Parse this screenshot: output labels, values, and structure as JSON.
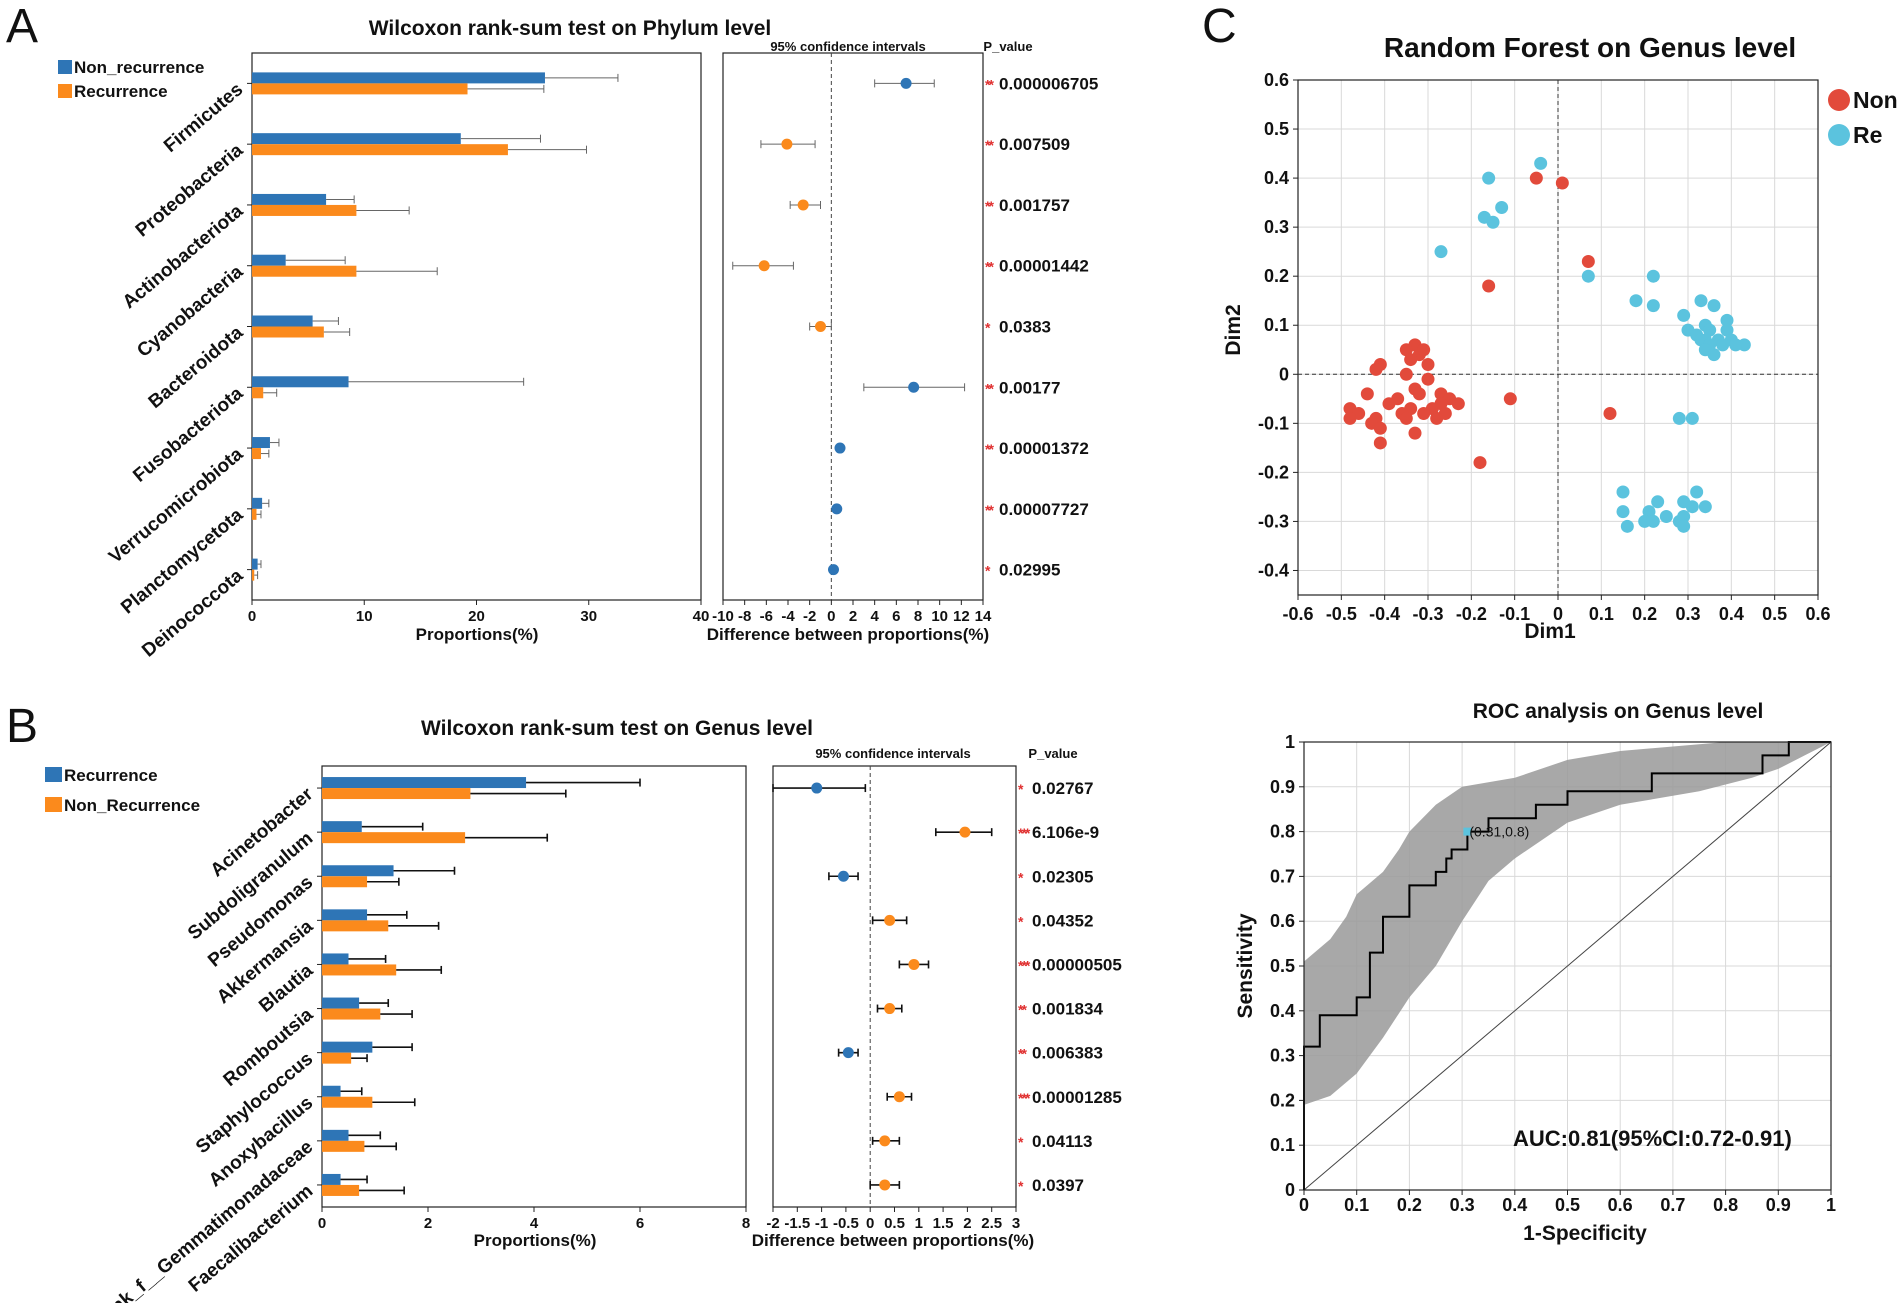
{
  "colors": {
    "blue": "#2e75b6",
    "orange": "#fb8a1c",
    "red": "#e24a3b",
    "cyan": "#5bc3de",
    "band": "#999999",
    "sig": "#e03030"
  },
  "panel_labels": {
    "a": "A",
    "b": "B",
    "c": "C"
  },
  "chart_data": [
    {
      "id": "A",
      "type": "bar",
      "title": "Wilcoxon rank-sum test on Phylum level",
      "xlabel": "Proportions(%)",
      "xlim": [
        0,
        40
      ],
      "xticks": [
        "0",
        "10",
        "20",
        "30",
        "40"
      ],
      "legend": [
        "Non_recurrence",
        "Recurrence"
      ],
      "categories": [
        "Firmicutes",
        "Proteobacteria",
        "Actinobacteriota",
        "Cyanobacteria",
        "Bacteroidota",
        "Fusobacteriota",
        "Verrucomicrobiota",
        "Planctomycetota",
        "Deinococcota"
      ],
      "series": [
        {
          "name": "Non_recurrence",
          "values": [
            26.1,
            18.6,
            6.6,
            3.0,
            5.4,
            8.6,
            1.6,
            0.9,
            0.5
          ],
          "err": [
            32.6,
            25.7,
            9.1,
            8.3,
            7.7,
            24.2,
            2.4,
            1.5,
            0.8
          ]
        },
        {
          "name": "Recurrence",
          "values": [
            19.2,
            22.8,
            9.3,
            9.3,
            6.4,
            1.0,
            0.8,
            0.4,
            0.2
          ],
          "err": [
            26.0,
            29.8,
            14.0,
            16.5,
            8.7,
            2.2,
            1.5,
            0.8,
            0.5
          ]
        }
      ],
      "ci_title": "95% confidence intervals",
      "ci_xlabel": "Difference between proportions(%)",
      "ci_xlim": [
        -10,
        14
      ],
      "ci_xticks": [
        "-10",
        "-8",
        "-6",
        "-4",
        "-2",
        "0",
        "2",
        "4",
        "6",
        "8",
        "10",
        "12",
        "14"
      ],
      "ci": [
        {
          "est": 6.9,
          "lo": 4.0,
          "hi": 9.5,
          "group": "Non_recurrence"
        },
        {
          "est": -4.1,
          "lo": -6.5,
          "hi": -1.5,
          "group": "Recurrence"
        },
        {
          "est": -2.6,
          "lo": -3.8,
          "hi": -1.0,
          "group": "Recurrence"
        },
        {
          "est": -6.2,
          "lo": -9.1,
          "hi": -3.5,
          "group": "Recurrence"
        },
        {
          "est": -1.0,
          "lo": -2.0,
          "hi": 0.0,
          "group": "Recurrence"
        },
        {
          "est": 7.6,
          "lo": 3.0,
          "hi": 12.3,
          "group": "Non_recurrence"
        },
        {
          "est": 0.8,
          "lo": 0.8,
          "hi": 0.8,
          "group": "Non_recurrence"
        },
        {
          "est": 0.5,
          "lo": 0.5,
          "hi": 0.5,
          "group": "Non_recurrence"
        },
        {
          "est": 0.2,
          "lo": 0.2,
          "hi": 0.2,
          "group": "Non_recurrence"
        }
      ],
      "p_title": "P_value",
      "p_values": [
        "0.000006705",
        "0.007509",
        "0.001757",
        "0.00001442",
        "0.0383",
        "0.00177",
        "0.00001372",
        "0.00007727",
        "0.02995"
      ],
      "p_marks": [
        "**",
        "**",
        "**",
        "**",
        "*",
        "**",
        "**",
        "**",
        "*"
      ]
    },
    {
      "id": "B",
      "type": "bar",
      "title": "Wilcoxon rank-sum test on Genus level",
      "xlabel": "Proportions(%)",
      "xlim": [
        0,
        8
      ],
      "xticks": [
        "0",
        "2",
        "4",
        "6",
        "8"
      ],
      "legend": [
        "Recurrence",
        "Non_Recurrence"
      ],
      "categories": [
        "Acinetobacter",
        "Subdoligranulum",
        "Pseudomonas",
        "Akkermansia",
        "Blautia",
        "Romboutsia",
        "Staphylococcus",
        "Anoxybacillus",
        "norank_f__Gemmatimonadaceae",
        "Faecalibacterium"
      ],
      "series": [
        {
          "name": "Recurrence",
          "values": [
            3.85,
            0.75,
            1.35,
            0.85,
            0.5,
            0.7,
            0.95,
            0.35,
            0.5,
            0.35
          ],
          "err": [
            6.0,
            1.9,
            2.5,
            1.6,
            1.2,
            1.25,
            1.7,
            0.75,
            1.1,
            0.85
          ]
        },
        {
          "name": "Non_Recurrence",
          "values": [
            2.8,
            2.7,
            0.85,
            1.25,
            1.4,
            1.1,
            0.55,
            0.95,
            0.8,
            0.7
          ],
          "err": [
            4.6,
            4.25,
            1.45,
            2.2,
            2.25,
            1.7,
            0.85,
            1.75,
            1.4,
            1.55
          ]
        }
      ],
      "ci_title": "95% confidence intervals",
      "ci_xlabel": "Difference between proportions(%)",
      "ci_xlim": [
        -2,
        3
      ],
      "ci_xticks": [
        "-2",
        "-1.5",
        "-1",
        "-0.5",
        "0",
        "0.5",
        "1",
        "1.5",
        "2",
        "2.5",
        "3"
      ],
      "ci": [
        {
          "est": -1.1,
          "lo": -2.0,
          "hi": -0.1,
          "group": "Recurrence"
        },
        {
          "est": 1.95,
          "lo": 1.35,
          "hi": 2.5,
          "group": "Non_Recurrence"
        },
        {
          "est": -0.55,
          "lo": -0.85,
          "hi": -0.25,
          "group": "Recurrence"
        },
        {
          "est": 0.4,
          "lo": 0.05,
          "hi": 0.75,
          "group": "Non_Recurrence"
        },
        {
          "est": 0.9,
          "lo": 0.6,
          "hi": 1.2,
          "group": "Non_Recurrence"
        },
        {
          "est": 0.4,
          "lo": 0.15,
          "hi": 0.65,
          "group": "Non_Recurrence"
        },
        {
          "est": -0.45,
          "lo": -0.65,
          "hi": -0.25,
          "group": "Recurrence"
        },
        {
          "est": 0.6,
          "lo": 0.35,
          "hi": 0.85,
          "group": "Non_Recurrence"
        },
        {
          "est": 0.3,
          "lo": 0.05,
          "hi": 0.6,
          "group": "Non_Recurrence"
        },
        {
          "est": 0.3,
          "lo": 0.0,
          "hi": 0.6,
          "group": "Non_Recurrence"
        }
      ],
      "p_title": "P_value",
      "p_values": [
        "0.02767",
        "6.106e-9",
        "0.02305",
        "0.04352",
        "0.00000505",
        "0.001834",
        "0.006383",
        "0.00001285",
        "0.04113",
        "0.0397"
      ],
      "p_marks": [
        "*",
        "***",
        "*",
        "*",
        "***",
        "**",
        "**",
        "***",
        "*",
        "*"
      ]
    },
    {
      "id": "C",
      "type": "scatter",
      "title": "Random Forest on Genus level",
      "xlabel": "Dim1",
      "ylabel": "Dim2",
      "xlim": [
        -0.6,
        0.6
      ],
      "ylim": [
        -0.45,
        0.6
      ],
      "xticks": [
        "-0.6",
        "-0.5",
        "-0.4",
        "-0.3",
        "-0.2",
        "-0.1",
        "0",
        "0.1",
        "0.2",
        "0.3",
        "0.4",
        "0.5",
        "0.6"
      ],
      "yticks": [
        "-0.4",
        "-0.3",
        "-0.2",
        "-0.1",
        "0",
        "0.1",
        "0.2",
        "0.3",
        "0.4",
        "0.5",
        "0.6"
      ],
      "legend": [
        "Non",
        "Re"
      ],
      "series": [
        {
          "name": "Non",
          "points": [
            [
              -0.05,
              0.4
            ],
            [
              0.01,
              0.39
            ],
            [
              0.07,
              0.23
            ],
            [
              -0.16,
              0.18
            ],
            [
              -0.33,
              0.06
            ],
            [
              -0.35,
              0.05
            ],
            [
              -0.32,
              0.04
            ],
            [
              -0.34,
              0.03
            ],
            [
              -0.31,
              0.05
            ],
            [
              -0.3,
              0.02
            ],
            [
              -0.41,
              0.02
            ],
            [
              -0.42,
              0.01
            ],
            [
              -0.35,
              0.0
            ],
            [
              -0.3,
              -0.01
            ],
            [
              -0.33,
              -0.03
            ],
            [
              -0.32,
              -0.04
            ],
            [
              -0.44,
              -0.04
            ],
            [
              -0.37,
              -0.05
            ],
            [
              -0.27,
              -0.04
            ],
            [
              -0.11,
              -0.05
            ],
            [
              -0.25,
              -0.05
            ],
            [
              -0.23,
              -0.06
            ],
            [
              -0.27,
              -0.06
            ],
            [
              -0.48,
              -0.07
            ],
            [
              -0.39,
              -0.06
            ],
            [
              -0.34,
              -0.07
            ],
            [
              -0.29,
              -0.07
            ],
            [
              -0.46,
              -0.08
            ],
            [
              -0.36,
              -0.08
            ],
            [
              -0.31,
              -0.08
            ],
            [
              -0.26,
              -0.08
            ],
            [
              -0.48,
              -0.09
            ],
            [
              -0.42,
              -0.09
            ],
            [
              -0.35,
              -0.09
            ],
            [
              -0.28,
              -0.09
            ],
            [
              -0.43,
              -0.1
            ],
            [
              -0.41,
              -0.11
            ],
            [
              -0.33,
              -0.12
            ],
            [
              0.12,
              -0.08
            ],
            [
              -0.18,
              -0.18
            ],
            [
              -0.41,
              -0.14
            ]
          ]
        },
        {
          "name": "Re",
          "points": [
            [
              -0.04,
              0.43
            ],
            [
              -0.16,
              0.4
            ],
            [
              -0.13,
              0.34
            ],
            [
              -0.17,
              0.32
            ],
            [
              -0.15,
              0.31
            ],
            [
              -0.27,
              0.25
            ],
            [
              0.07,
              0.2
            ],
            [
              0.22,
              0.2
            ],
            [
              0.18,
              0.15
            ],
            [
              0.33,
              0.15
            ],
            [
              0.22,
              0.14
            ],
            [
              0.36,
              0.14
            ],
            [
              0.29,
              0.12
            ],
            [
              0.39,
              0.11
            ],
            [
              0.34,
              0.1
            ],
            [
              0.3,
              0.09
            ],
            [
              0.35,
              0.09
            ],
            [
              0.39,
              0.09
            ],
            [
              0.32,
              0.08
            ],
            [
              0.33,
              0.07
            ],
            [
              0.37,
              0.07
            ],
            [
              0.34,
              0.07
            ],
            [
              0.4,
              0.07
            ],
            [
              0.35,
              0.06
            ],
            [
              0.38,
              0.06
            ],
            [
              0.43,
              0.06
            ],
            [
              0.41,
              0.06
            ],
            [
              0.34,
              0.05
            ],
            [
              0.36,
              0.04
            ],
            [
              0.28,
              -0.09
            ],
            [
              0.31,
              -0.09
            ],
            [
              0.15,
              -0.24
            ],
            [
              0.32,
              -0.24
            ],
            [
              0.23,
              -0.26
            ],
            [
              0.29,
              -0.26
            ],
            [
              0.34,
              -0.27
            ],
            [
              0.31,
              -0.27
            ],
            [
              0.15,
              -0.28
            ],
            [
              0.21,
              -0.28
            ],
            [
              0.25,
              -0.29
            ],
            [
              0.29,
              -0.29
            ],
            [
              0.28,
              -0.3
            ],
            [
              0.16,
              -0.31
            ],
            [
              0.2,
              -0.3
            ],
            [
              0.22,
              -0.3
            ],
            [
              0.29,
              -0.31
            ]
          ]
        }
      ]
    },
    {
      "id": "D",
      "type": "line",
      "title": "ROC analysis on Genus level",
      "xlabel": "1-Specificity",
      "ylabel": "Sensitivity",
      "xlim": [
        0,
        1
      ],
      "ylim": [
        0,
        1
      ],
      "xticks": [
        "0",
        "0.1",
        "0.2",
        "0.3",
        "0.4",
        "0.5",
        "0.6",
        "0.7",
        "0.8",
        "0.9",
        "1"
      ],
      "yticks": [
        "0",
        "0.1",
        "0.2",
        "0.3",
        "0.4",
        "0.5",
        "0.6",
        "0.7",
        "0.8",
        "0.9",
        "1"
      ],
      "curve": [
        [
          0,
          0
        ],
        [
          0,
          0.32
        ],
        [
          0.03,
          0.32
        ],
        [
          0.03,
          0.39
        ],
        [
          0.1,
          0.39
        ],
        [
          0.1,
          0.43
        ],
        [
          0.125,
          0.43
        ],
        [
          0.125,
          0.53
        ],
        [
          0.15,
          0.53
        ],
        [
          0.15,
          0.61
        ],
        [
          0.2,
          0.61
        ],
        [
          0.2,
          0.68
        ],
        [
          0.25,
          0.68
        ],
        [
          0.25,
          0.71
        ],
        [
          0.27,
          0.71
        ],
        [
          0.27,
          0.74
        ],
        [
          0.28,
          0.74
        ],
        [
          0.28,
          0.76
        ],
        [
          0.31,
          0.76
        ],
        [
          0.31,
          0.8
        ],
        [
          0.35,
          0.8
        ],
        [
          0.35,
          0.83
        ],
        [
          0.44,
          0.83
        ],
        [
          0.44,
          0.86
        ],
        [
          0.5,
          0.86
        ],
        [
          0.5,
          0.89
        ],
        [
          0.66,
          0.89
        ],
        [
          0.66,
          0.93
        ],
        [
          0.87,
          0.93
        ],
        [
          0.87,
          0.97
        ],
        [
          0.92,
          0.97
        ],
        [
          0.92,
          1
        ],
        [
          1,
          1
        ]
      ],
      "band_upper": [
        [
          0,
          0.51
        ],
        [
          0.05,
          0.56
        ],
        [
          0.08,
          0.61
        ],
        [
          0.1,
          0.66
        ],
        [
          0.15,
          0.71
        ],
        [
          0.18,
          0.76
        ],
        [
          0.2,
          0.8
        ],
        [
          0.25,
          0.86
        ],
        [
          0.3,
          0.9
        ],
        [
          0.4,
          0.92
        ],
        [
          0.5,
          0.96
        ],
        [
          0.6,
          0.98
        ],
        [
          0.7,
          0.99
        ],
        [
          0.8,
          1
        ],
        [
          1,
          1
        ]
      ],
      "band_lower": [
        [
          1,
          1
        ],
        [
          0.95,
          0.97
        ],
        [
          0.9,
          0.94
        ],
        [
          0.85,
          0.92
        ],
        [
          0.75,
          0.89
        ],
        [
          0.6,
          0.86
        ],
        [
          0.5,
          0.82
        ],
        [
          0.4,
          0.74
        ],
        [
          0.35,
          0.69
        ],
        [
          0.3,
          0.6
        ],
        [
          0.25,
          0.5
        ],
        [
          0.2,
          0.43
        ],
        [
          0.15,
          0.34
        ],
        [
          0.1,
          0.26
        ],
        [
          0.05,
          0.21
        ],
        [
          0,
          0.19
        ]
      ],
      "marker": {
        "x": 0.31,
        "y": 0.8,
        "label": "(0.31,0.8)"
      },
      "annotation": "AUC:0.81(95%CI:0.72-0.91)"
    }
  ]
}
